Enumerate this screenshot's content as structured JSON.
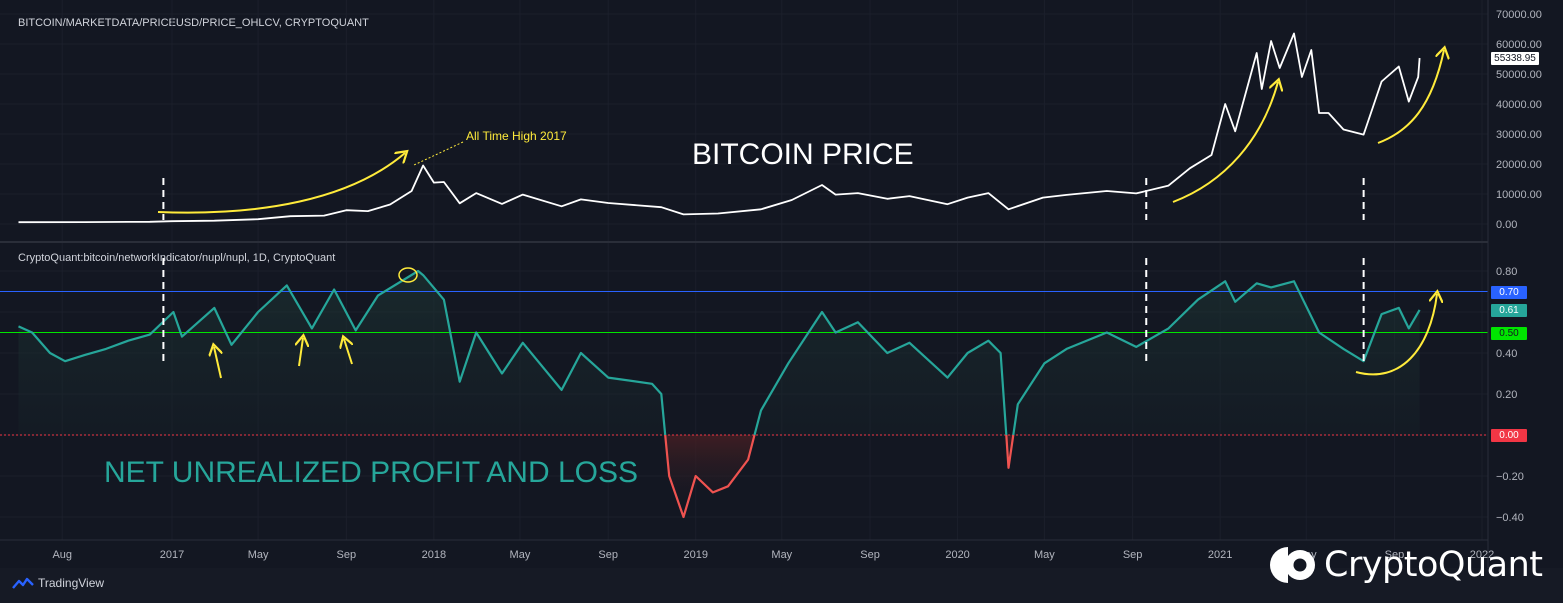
{
  "chart_data": {
    "type": "line",
    "x_ticks": [
      "Aug",
      "2017",
      "May",
      "Sep",
      "2018",
      "May",
      "Sep",
      "2019",
      "May",
      "Sep",
      "2020",
      "May",
      "Sep",
      "2021",
      "May",
      "Sep",
      "2022"
    ],
    "panes": [
      {
        "name": "price",
        "title": "BITCOIN/MARKETDATA/PRICEUSD/PRICE_OHLCV, CRYPTOQUANT",
        "label": "BITCOIN PRICE",
        "ylim": [
          0,
          70000
        ],
        "y_ticks": [
          "70000.00",
          "60000.00",
          "50000.00",
          "40000.00",
          "30000.00",
          "20000.00",
          "10000.00",
          "0.00"
        ],
        "last_value": "55338.95",
        "annotation": "All Time High 2017",
        "series": [
          {
            "color": "#ffffff",
            "points": [
              [
                "2016-06-01",
                600
              ],
              [
                "2016-09-01",
                620
              ],
              [
                "2016-12-01",
                750
              ],
              [
                "2017-01-01",
                950
              ],
              [
                "2017-03-01",
                1100
              ],
              [
                "2017-05-01",
                1600
              ],
              [
                "2017-06-15",
                2600
              ],
              [
                "2017-08-01",
                2800
              ],
              [
                "2017-09-01",
                4600
              ],
              [
                "2017-10-01",
                4300
              ],
              [
                "2017-11-01",
                6500
              ],
              [
                "2017-12-01",
                11000
              ],
              [
                "2017-12-17",
                19500
              ],
              [
                "2018-01-01",
                13800
              ],
              [
                "2018-01-15",
                14000
              ],
              [
                "2018-02-06",
                6900
              ],
              [
                "2018-03-01",
                10300
              ],
              [
                "2018-04-06",
                6700
              ],
              [
                "2018-05-05",
                9800
              ],
              [
                "2018-06-28",
                5900
              ],
              [
                "2018-07-25",
                8200
              ],
              [
                "2018-09-01",
                7000
              ],
              [
                "2018-11-14",
                5600
              ],
              [
                "2018-12-15",
                3200
              ],
              [
                "2019-02-01",
                3500
              ],
              [
                "2019-04-02",
                4900
              ],
              [
                "2019-05-15",
                8000
              ],
              [
                "2019-06-26",
                13000
              ],
              [
                "2019-07-15",
                9800
              ],
              [
                "2019-08-15",
                10300
              ],
              [
                "2019-09-25",
                8400
              ],
              [
                "2019-10-26",
                9300
              ],
              [
                "2019-12-18",
                6600
              ],
              [
                "2020-01-15",
                8800
              ],
              [
                "2020-02-13",
                10300
              ],
              [
                "2020-03-12",
                4900
              ],
              [
                "2020-04-29",
                8800
              ],
              [
                "2020-06-01",
                9700
              ],
              [
                "2020-07-27",
                11000
              ],
              [
                "2020-09-06",
                10200
              ],
              [
                "2020-10-21",
                12800
              ],
              [
                "2020-11-20",
                18600
              ],
              [
                "2020-12-20",
                23000
              ],
              [
                "2021-01-08",
                40000
              ],
              [
                "2021-01-22",
                30900
              ],
              [
                "2021-02-21",
                57000
              ],
              [
                "2021-02-28",
                45000
              ],
              [
                "2021-03-13",
                61000
              ],
              [
                "2021-03-25",
                52000
              ],
              [
                "2021-04-14",
                63500
              ],
              [
                "2021-04-25",
                49000
              ],
              [
                "2021-05-08",
                58000
              ],
              [
                "2021-05-19",
                37000
              ],
              [
                "2021-06-01",
                37000
              ],
              [
                "2021-06-22",
                31500
              ],
              [
                "2021-07-20",
                29800
              ],
              [
                "2021-08-14",
                47500
              ],
              [
                "2021-09-07",
                52500
              ],
              [
                "2021-09-21",
                40800
              ],
              [
                "2021-10-04",
                49000
              ],
              [
                "2021-10-06",
                55338.95
              ]
            ]
          }
        ]
      },
      {
        "name": "nupl",
        "title": "CryptoQuant:bitcoin/networkIndicator/nupl/nupl, 1D, CryptoQuant",
        "label": "NET UNREALIZED PROFIT AND LOSS",
        "ylim": [
          -0.45,
          0.85
        ],
        "y_ticks": [
          "0.80",
          "0.60",
          "0.40",
          "0.20",
          "0.00",
          "-0.20",
          "-0.40"
        ],
        "last_value": "0.61",
        "levels": [
          {
            "value": "0.70",
            "color": "#2962ff"
          },
          {
            "value": "0.50",
            "color": "#00e600"
          },
          {
            "value": "0.00",
            "color": "#f23645"
          }
        ],
        "series": [
          {
            "color": "#26a69a",
            "negative_color": "#ef5350",
            "points": [
              [
                "2016-06-01",
                0.53
              ],
              [
                "2016-06-20",
                0.5
              ],
              [
                "2016-07-15",
                0.4
              ],
              [
                "2016-08-05",
                0.36
              ],
              [
                "2016-09-01",
                0.39
              ],
              [
                "2016-10-01",
                0.42
              ],
              [
                "2016-11-01",
                0.46
              ],
              [
                "2016-12-01",
                0.49
              ],
              [
                "2017-01-03",
                0.6
              ],
              [
                "2017-01-15",
                0.48
              ],
              [
                "2017-03-01",
                0.62
              ],
              [
                "2017-03-25",
                0.44
              ],
              [
                "2017-05-01",
                0.6
              ],
              [
                "2017-06-10",
                0.73
              ],
              [
                "2017-07-15",
                0.52
              ],
              [
                "2017-08-15",
                0.71
              ],
              [
                "2017-09-14",
                0.51
              ],
              [
                "2017-10-15",
                0.68
              ],
              [
                "2017-12-10",
                0.8
              ],
              [
                "2017-12-17",
                0.78
              ],
              [
                "2018-01-15",
                0.66
              ],
              [
                "2018-02-06",
                0.26
              ],
              [
                "2018-03-01",
                0.5
              ],
              [
                "2018-04-06",
                0.3
              ],
              [
                "2018-05-05",
                0.45
              ],
              [
                "2018-06-28",
                0.22
              ],
              [
                "2018-07-25",
                0.4
              ],
              [
                "2018-09-01",
                0.28
              ],
              [
                "2018-11-01",
                0.25
              ],
              [
                "2018-11-14",
                0.2
              ],
              [
                "2018-11-25",
                -0.2
              ],
              [
                "2018-12-15",
                -0.4
              ],
              [
                "2019-01-01",
                -0.2
              ],
              [
                "2019-01-25",
                -0.28
              ],
              [
                "2019-02-15",
                -0.25
              ],
              [
                "2019-03-15",
                -0.12
              ],
              [
                "2019-04-02",
                0.12
              ],
              [
                "2019-05-10",
                0.35
              ],
              [
                "2019-06-26",
                0.6
              ],
              [
                "2019-07-15",
                0.5
              ],
              [
                "2019-08-15",
                0.55
              ],
              [
                "2019-09-25",
                0.4
              ],
              [
                "2019-10-26",
                0.45
              ],
              [
                "2019-12-18",
                0.28
              ],
              [
                "2020-01-15",
                0.4
              ],
              [
                "2020-02-13",
                0.46
              ],
              [
                "2020-03-01",
                0.4
              ],
              [
                "2020-03-12",
                -0.16
              ],
              [
                "2020-03-25",
                0.15
              ],
              [
                "2020-05-01",
                0.35
              ],
              [
                "2020-06-01",
                0.42
              ],
              [
                "2020-07-27",
                0.5
              ],
              [
                "2020-09-06",
                0.43
              ],
              [
                "2020-10-21",
                0.52
              ],
              [
                "2020-12-01",
                0.66
              ],
              [
                "2021-01-08",
                0.75
              ],
              [
                "2021-01-22",
                0.65
              ],
              [
                "2021-02-21",
                0.74
              ],
              [
                "2021-03-13",
                0.72
              ],
              [
                "2021-04-14",
                0.75
              ],
              [
                "2021-05-19",
                0.5
              ],
              [
                "2021-06-22",
                0.42
              ],
              [
                "2021-07-20",
                0.36
              ],
              [
                "2021-08-14",
                0.59
              ],
              [
                "2021-09-07",
                0.62
              ],
              [
                "2021-09-21",
                0.52
              ],
              [
                "2021-10-06",
                0.61
              ]
            ]
          }
        ]
      }
    ]
  },
  "branding": {
    "tradingview": "TradingView",
    "cryptoquant": "CryptoQuant"
  },
  "colors": {
    "background": "#131722",
    "annotation": "#ffeb3b"
  }
}
